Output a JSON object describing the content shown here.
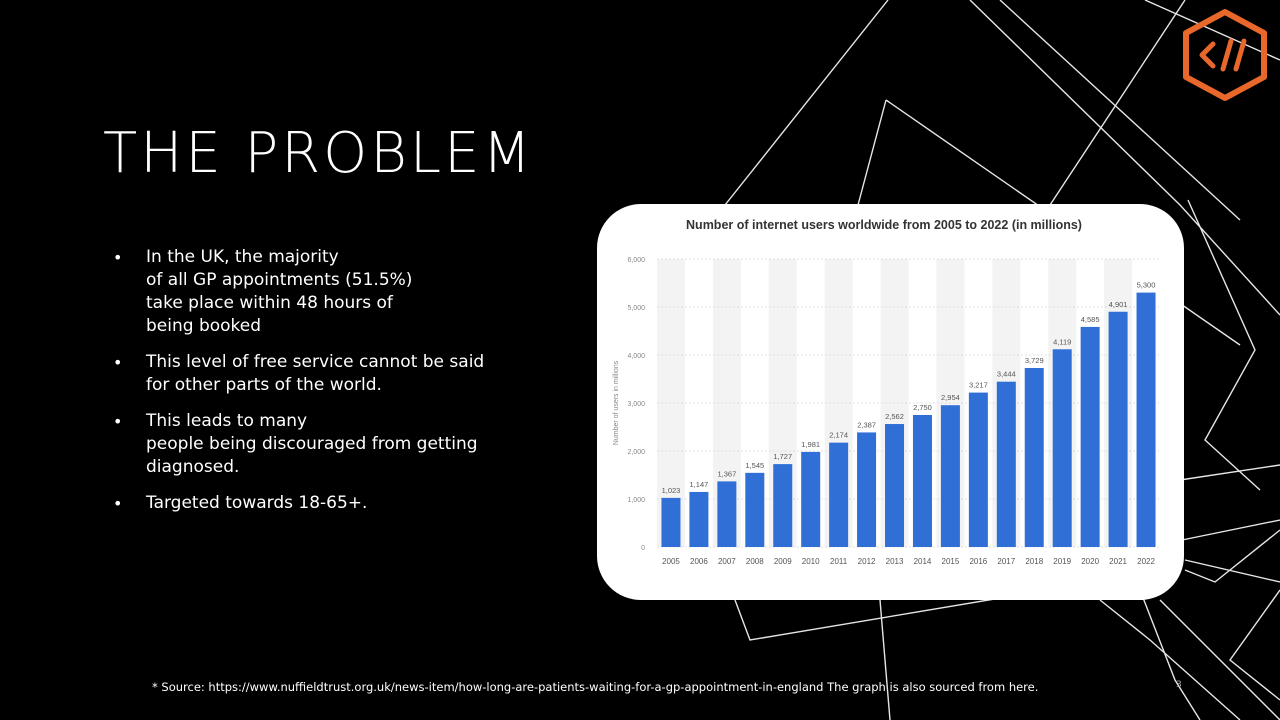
{
  "slide": {
    "title": "THE PROBLEM",
    "bullets": [
      "In the UK, the majority\nof all GP appointments (51.5%)\ntake place within 48 hours of\nbeing booked",
      "This level of free service cannot be said\nfor other parts of the world.",
      "This leads to many\npeople being discouraged from getting\ndiagnosed.",
      "Targeted towards 18-65+."
    ],
    "bullet_glyph": "•",
    "footer_text": "* Source: https://www.nuffieldtrust.org.uk/news-item/how-long-are-patients-waiting-for-a-gp-appointment-in-england The graph is also sourced from here.",
    "page_number": "3",
    "logo_icon": "code-slash-hexagon-icon",
    "colors": {
      "background": "#000000",
      "accent_logo": "#e8672a",
      "bar": "#2f6fd6",
      "text": "#ffffff"
    }
  },
  "chart_data": {
    "type": "bar",
    "title": "Number of internet users worldwide from 2005 to 2022 (in millions)",
    "xlabel": "",
    "ylabel": "Number of users in millions",
    "categories": [
      "2005",
      "2006",
      "2007",
      "2008",
      "2009",
      "2010",
      "2011",
      "2012",
      "2013",
      "2014",
      "2015",
      "2016",
      "2017",
      "2018",
      "2019",
      "2020",
      "2021",
      "2022"
    ],
    "values": [
      1023,
      1147,
      1367,
      1545,
      1727,
      1981,
      2174,
      2387,
      2562,
      2750,
      2954,
      3217,
      3444,
      3729,
      4119,
      4585,
      4901,
      5300
    ],
    "value_labels": [
      "1,023",
      "1,147",
      "1,367",
      "1,545",
      "1,727",
      "1,981",
      "2,174",
      "2,387",
      "2,562",
      "2,750",
      "2,954",
      "3,217",
      "3,444",
      "3,729",
      "4,119",
      "4,585",
      "4,901",
      "5,300"
    ],
    "ylim": [
      0,
      6000
    ],
    "yticks": [
      0,
      1000,
      2000,
      3000,
      4000,
      5000,
      6000
    ],
    "ytick_labels": [
      "0",
      "1,000",
      "2,000",
      "3,000",
      "4,000",
      "5,000",
      "6,000"
    ],
    "grid": true,
    "legend": "none"
  }
}
